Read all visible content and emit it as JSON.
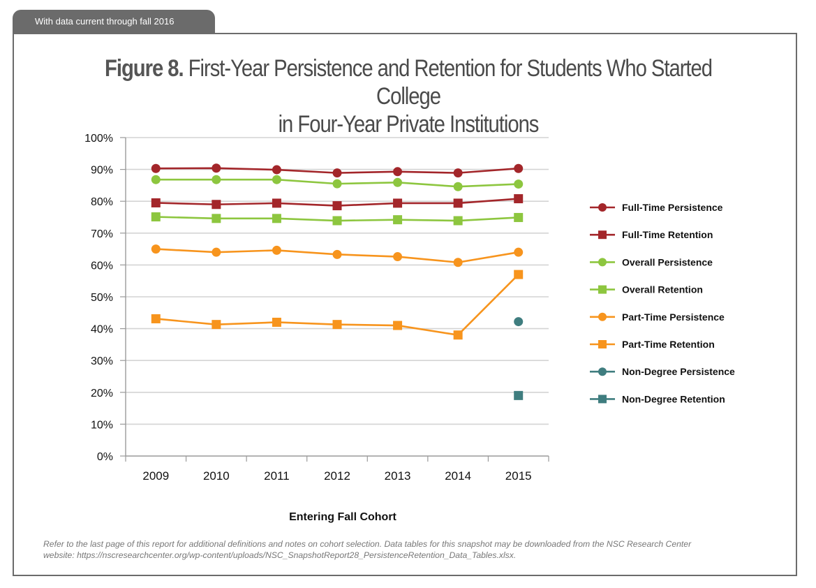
{
  "header_tab": "With data current through fall 2016",
  "title": {
    "figure_label": "Figure 8.",
    "line1": "First-Year Persistence and Retention for Students Who Started College",
    "line2": "in Four-Year Private Institutions"
  },
  "footnote": {
    "line1": "Refer to the last page of this report for additional definitions and notes on cohort selection. Data tables for this snapshot may be downloaded from the NSC Research Center",
    "line2": "website: https://nscresearchcenter.org/wp-content/uploads/NSC_SnapshotReport28_PersistenceRetention_Data_Tables.xlsx."
  },
  "chart_data": {
    "type": "line",
    "xlabel": "Entering Fall Cohort",
    "ylabel": "",
    "categories": [
      "2009",
      "2010",
      "2011",
      "2012",
      "2013",
      "2014",
      "2015"
    ],
    "ylim": [
      0,
      100
    ],
    "yticks": [
      0,
      10,
      20,
      30,
      40,
      50,
      60,
      70,
      80,
      90,
      100
    ],
    "ytick_labels": [
      "0%",
      "10%",
      "20%",
      "30%",
      "40%",
      "50%",
      "60%",
      "70%",
      "80%",
      "90%",
      "100%"
    ],
    "grid": true,
    "legend_position": "right",
    "series": [
      {
        "name": "Full-Time Persistence",
        "color": "#a3262a",
        "marker": "circle",
        "values": [
          90.3,
          90.4,
          89.9,
          88.9,
          89.3,
          88.9,
          90.3
        ]
      },
      {
        "name": "Full-Time Retention",
        "color": "#a3262a",
        "marker": "square",
        "values": [
          79.5,
          79.0,
          79.4,
          78.6,
          79.4,
          79.4,
          80.8
        ]
      },
      {
        "name": "Overall Persistence",
        "color": "#8dc63f",
        "marker": "circle",
        "values": [
          86.8,
          86.8,
          86.8,
          85.5,
          85.9,
          84.6,
          85.4
        ]
      },
      {
        "name": "Overall Retention",
        "color": "#8dc63f",
        "marker": "square",
        "values": [
          75.1,
          74.6,
          74.6,
          73.9,
          74.2,
          73.9,
          74.9
        ]
      },
      {
        "name": "Part-Time Persistence",
        "color": "#f7941d",
        "marker": "circle",
        "values": [
          65.0,
          64.0,
          64.6,
          63.3,
          62.6,
          60.8,
          64.0
        ]
      },
      {
        "name": "Part-Time Retention",
        "color": "#f7941d",
        "marker": "square",
        "values": [
          43.1,
          41.3,
          42.0,
          41.3,
          41.0,
          38.0,
          57.0
        ]
      },
      {
        "name": "Non-Degree Persistence",
        "color": "#3f7d7f",
        "marker": "circle",
        "values": [
          null,
          null,
          null,
          null,
          null,
          null,
          42.2
        ]
      },
      {
        "name": "Non-Degree Retention",
        "color": "#3f7d7f",
        "marker": "square",
        "values": [
          null,
          null,
          null,
          null,
          null,
          null,
          19.0
        ]
      }
    ]
  }
}
